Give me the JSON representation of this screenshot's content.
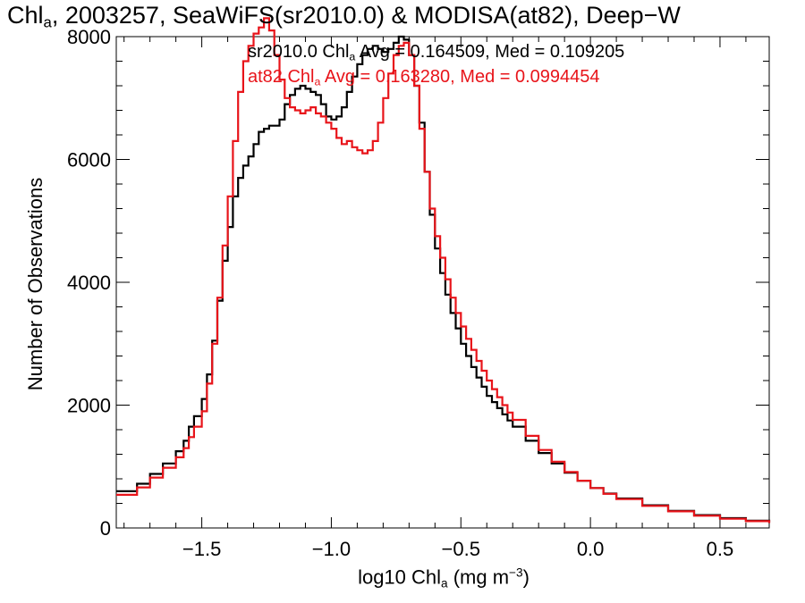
{
  "title": {
    "prefix": "Chl",
    "sub": "a",
    "rest": ", 2003257, SeaWiFS(sr2010.0) & MODISA(at82), Deep−W"
  },
  "legend": [
    {
      "pre": "sr2010.0 Chl",
      "sub": "a",
      "post": " Avg = 0.164509, Med = 0.109205",
      "color": "#000000"
    },
    {
      "pre": "at82 Chl",
      "sub": "a",
      "post": " Avg = 0.163280, Med = 0.0994454",
      "color": "#e8141a"
    }
  ],
  "xlabel": {
    "pre": "log10 Chl",
    "sub": "a",
    "mid": " (mg m",
    "sup": "−3",
    "post": ")"
  },
  "ylabel": "Number of Observations",
  "chart_data": {
    "type": "line",
    "xlim": [
      -1.83,
      0.69
    ],
    "ylim": [
      0,
      8000
    ],
    "xticks": [
      -1.5,
      -1.0,
      -0.5,
      0.0,
      0.5
    ],
    "xtick_labels": [
      "−1.5",
      "−1.0",
      "−0.5",
      "0.0",
      "0.5"
    ],
    "yticks": [
      0,
      2000,
      4000,
      6000,
      8000
    ],
    "ytick_labels": [
      "0",
      "2000",
      "4000",
      "6000",
      "8000"
    ],
    "grid": false,
    "series": [
      {
        "name": "sr2010.0",
        "color": "#000000",
        "x": [
          -1.83,
          -1.75,
          -1.7,
          -1.65,
          -1.6,
          -1.57,
          -1.55,
          -1.53,
          -1.5,
          -1.48,
          -1.46,
          -1.44,
          -1.42,
          -1.4,
          -1.38,
          -1.36,
          -1.34,
          -1.32,
          -1.3,
          -1.28,
          -1.26,
          -1.24,
          -1.22,
          -1.2,
          -1.18,
          -1.16,
          -1.14,
          -1.12,
          -1.1,
          -1.08,
          -1.06,
          -1.04,
          -1.02,
          -1.0,
          -0.98,
          -0.96,
          -0.94,
          -0.92,
          -0.9,
          -0.88,
          -0.86,
          -0.84,
          -0.82,
          -0.8,
          -0.78,
          -0.76,
          -0.74,
          -0.72,
          -0.7,
          -0.68,
          -0.66,
          -0.64,
          -0.62,
          -0.6,
          -0.58,
          -0.56,
          -0.54,
          -0.52,
          -0.5,
          -0.48,
          -0.46,
          -0.44,
          -0.42,
          -0.4,
          -0.38,
          -0.36,
          -0.34,
          -0.32,
          -0.3,
          -0.25,
          -0.2,
          -0.15,
          -0.1,
          -0.05,
          0.0,
          0.05,
          0.1,
          0.2,
          0.3,
          0.4,
          0.5,
          0.6,
          0.69
        ],
        "y": [
          600,
          720,
          880,
          1050,
          1250,
          1420,
          1650,
          1820,
          2100,
          2500,
          3050,
          3700,
          4350,
          4900,
          5400,
          5700,
          5900,
          6050,
          6250,
          6450,
          6500,
          6550,
          6550,
          6650,
          6900,
          7050,
          7150,
          7200,
          7150,
          7100,
          7050,
          6900,
          6700,
          6650,
          6700,
          6850,
          7100,
          7350,
          7550,
          7700,
          7800,
          7850,
          7800,
          7750,
          7800,
          7900,
          8000,
          7950,
          7700,
          7200,
          6600,
          5800,
          5100,
          4550,
          4150,
          3800,
          3500,
          3250,
          3000,
          2800,
          2620,
          2450,
          2300,
          2150,
          2050,
          1950,
          1850,
          1750,
          1650,
          1420,
          1220,
          1050,
          900,
          770,
          650,
          560,
          480,
          370,
          280,
          210,
          160,
          120,
          90
        ]
      },
      {
        "name": "at82",
        "color": "#e8141a",
        "x": [
          -1.83,
          -1.75,
          -1.7,
          -1.65,
          -1.6,
          -1.57,
          -1.55,
          -1.53,
          -1.5,
          -1.48,
          -1.46,
          -1.44,
          -1.42,
          -1.4,
          -1.38,
          -1.36,
          -1.34,
          -1.32,
          -1.3,
          -1.28,
          -1.26,
          -1.24,
          -1.22,
          -1.2,
          -1.18,
          -1.16,
          -1.14,
          -1.12,
          -1.1,
          -1.08,
          -1.06,
          -1.04,
          -1.02,
          -1.0,
          -0.98,
          -0.96,
          -0.94,
          -0.92,
          -0.9,
          -0.88,
          -0.86,
          -0.84,
          -0.82,
          -0.8,
          -0.78,
          -0.76,
          -0.74,
          -0.72,
          -0.7,
          -0.68,
          -0.66,
          -0.64,
          -0.62,
          -0.6,
          -0.58,
          -0.56,
          -0.54,
          -0.52,
          -0.5,
          -0.48,
          -0.46,
          -0.44,
          -0.42,
          -0.4,
          -0.38,
          -0.36,
          -0.34,
          -0.32,
          -0.3,
          -0.25,
          -0.2,
          -0.15,
          -0.1,
          -0.05,
          0.0,
          0.05,
          0.1,
          0.2,
          0.3,
          0.4,
          0.5,
          0.6,
          0.69
        ],
        "y": [
          540,
          660,
          820,
          980,
          1150,
          1300,
          1480,
          1650,
          1900,
          2350,
          3000,
          3750,
          4600,
          5400,
          6300,
          7100,
          7600,
          7850,
          8050,
          8150,
          8300,
          8100,
          7700,
          7300,
          7000,
          6850,
          6800,
          6750,
          6800,
          6850,
          6750,
          6700,
          6600,
          6500,
          6350,
          6250,
          6300,
          6200,
          6150,
          6100,
          6150,
          6300,
          6600,
          7000,
          7400,
          7700,
          7850,
          7900,
          7700,
          7200,
          6500,
          5800,
          5200,
          4750,
          4400,
          4050,
          3750,
          3500,
          3280,
          3080,
          2900,
          2720,
          2560,
          2400,
          2260,
          2130,
          2000,
          1880,
          1760,
          1500,
          1270,
          1080,
          910,
          770,
          650,
          555,
          470,
          360,
          270,
          200,
          150,
          110,
          80
        ]
      }
    ]
  }
}
